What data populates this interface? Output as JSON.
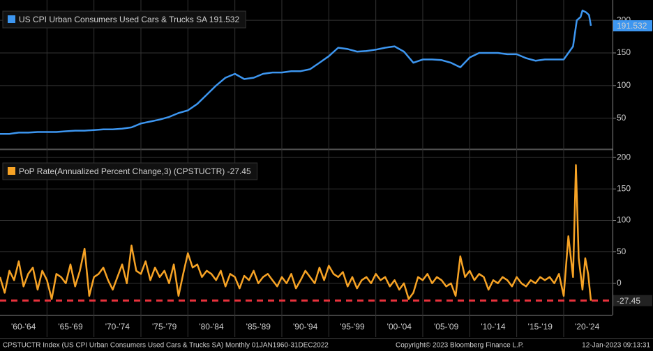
{
  "chart_data": [
    {
      "type": "line",
      "name": "US CPI Urban Consumers Used Cars & Trucks SA",
      "color": "#3d96f0",
      "last_label": "191.532",
      "x": [
        1960,
        1961,
        1962,
        1963,
        1964,
        1965,
        1966,
        1967,
        1968,
        1969,
        1970,
        1971,
        1972,
        1973,
        1974,
        1975,
        1976,
        1977,
        1978,
        1979,
        1980,
        1981,
        1982,
        1983,
        1984,
        1985,
        1986,
        1987,
        1988,
        1989,
        1990,
        1991,
        1992,
        1993,
        1994,
        1995,
        1996,
        1997,
        1998,
        1999,
        2000,
        2001,
        2002,
        2003,
        2004,
        2005,
        2006,
        2007,
        2008,
        2009,
        2010,
        2011,
        2012,
        2013,
        2014,
        2015,
        2016,
        2017,
        2018,
        2019,
        2020,
        2020.5,
        2021,
        2021.4,
        2021.8,
        2022,
        2022.4,
        2022.7,
        2022.9
      ],
      "values": [
        26,
        26,
        28,
        28,
        29,
        29,
        29,
        30,
        31,
        31,
        32,
        33,
        33,
        34,
        36,
        42,
        45,
        48,
        52,
        58,
        62,
        72,
        86,
        100,
        112,
        118,
        110,
        112,
        118,
        120,
        120,
        122,
        122,
        125,
        135,
        145,
        158,
        156,
        152,
        153,
        155,
        158,
        160,
        152,
        135,
        140,
        140,
        139,
        135,
        128,
        143,
        150,
        150,
        150,
        148,
        148,
        142,
        138,
        140,
        140,
        140,
        150,
        160,
        200,
        205,
        215,
        212,
        208,
        191.532
      ],
      "xlim": [
        1960,
        2025.2
      ],
      "ylim": [
        5,
        231
      ],
      "yticks": [
        50,
        100,
        150,
        200
      ],
      "grid": true
    },
    {
      "type": "line",
      "name": "PoP Rate(Annualized Percent Change,3) (CPSTUCTR)",
      "color": "#f7a325",
      "last_label": "-27.45",
      "x": [
        1960,
        1960.5,
        1961,
        1961.5,
        1962,
        1962.5,
        1963,
        1963.5,
        1964,
        1964.5,
        1965,
        1965.5,
        1966,
        1966.5,
        1967,
        1967.5,
        1968,
        1968.5,
        1969,
        1969.5,
        1970,
        1970.5,
        1971,
        1971.5,
        1972,
        1972.5,
        1973,
        1973.5,
        1974,
        1974.5,
        1975,
        1975.5,
        1976,
        1976.5,
        1977,
        1977.5,
        1978,
        1978.5,
        1979,
        1979.5,
        1980,
        1980.5,
        1981,
        1981.5,
        1982,
        1982.5,
        1983,
        1983.5,
        1984,
        1984.5,
        1985,
        1985.5,
        1986,
        1986.5,
        1987,
        1987.5,
        1988,
        1988.5,
        1989,
        1989.5,
        1990,
        1990.5,
        1991,
        1991.5,
        1992,
        1992.5,
        1993,
        1993.5,
        1994,
        1994.5,
        1995,
        1995.5,
        1996,
        1996.5,
        1997,
        1997.5,
        1998,
        1998.5,
        1999,
        1999.5,
        2000,
        2000.5,
        2001,
        2001.5,
        2002,
        2002.5,
        2003,
        2003.5,
        2004,
        2004.5,
        2005,
        2005.5,
        2006,
        2006.5,
        2007,
        2007.5,
        2008,
        2008.5,
        2009,
        2009.5,
        2010,
        2010.5,
        2011,
        2011.5,
        2012,
        2012.5,
        2013,
        2013.5,
        2014,
        2014.5,
        2015,
        2015.5,
        2016,
        2016.5,
        2017,
        2017.5,
        2018,
        2018.5,
        2019,
        2019.5,
        2020,
        2020.5,
        2021,
        2021.3,
        2021.6,
        2022,
        2022.3,
        2022.6,
        2022.9
      ],
      "values": [
        10,
        -15,
        20,
        5,
        35,
        -5,
        15,
        25,
        -10,
        20,
        5,
        -25,
        15,
        10,
        0,
        30,
        -5,
        20,
        55,
        -20,
        10,
        15,
        25,
        5,
        -10,
        10,
        30,
        0,
        60,
        20,
        15,
        35,
        5,
        25,
        10,
        20,
        0,
        30,
        -20,
        15,
        48,
        25,
        30,
        10,
        20,
        15,
        5,
        20,
        -5,
        15,
        10,
        -8,
        12,
        5,
        20,
        0,
        10,
        15,
        5,
        -5,
        10,
        0,
        15,
        -8,
        5,
        20,
        10,
        0,
        25,
        5,
        28,
        15,
        10,
        18,
        -5,
        10,
        -8,
        5,
        10,
        0,
        15,
        5,
        10,
        -5,
        5,
        -10,
        0,
        -25,
        -15,
        10,
        5,
        15,
        0,
        10,
        5,
        -5,
        0,
        -20,
        43,
        10,
        20,
        5,
        15,
        10,
        -10,
        5,
        0,
        10,
        5,
        -5,
        10,
        0,
        -5,
        5,
        0,
        10,
        5,
        10,
        0,
        15,
        -20,
        75,
        10,
        188,
        40,
        -10,
        40,
        15,
        -27.45
      ],
      "reference_line": -27.45,
      "reference_color": "#e8323c",
      "xlim": [
        1960,
        2025.2
      ],
      "ylim": [
        -50,
        209
      ],
      "yticks": [
        0,
        50,
        100,
        150,
        200
      ],
      "grid": true,
      "xgrid": [
        1965,
        1970,
        1975,
        1980,
        1985,
        1990,
        1995,
        2000,
        2005,
        2010,
        2015,
        2020
      ],
      "xticks": [
        {
          "value": 1962.5,
          "label": "'60-'64"
        },
        {
          "value": 1967.5,
          "label": "'65-'69"
        },
        {
          "value": 1972.5,
          "label": "'70-'74"
        },
        {
          "value": 1977.5,
          "label": "'75-'79"
        },
        {
          "value": 1982.5,
          "label": "'80-'84"
        },
        {
          "value": 1987.5,
          "label": "'85-'89"
        },
        {
          "value": 1992.5,
          "label": "'90-'94"
        },
        {
          "value": 1997.5,
          "label": "'95-'99"
        },
        {
          "value": 2002.5,
          "label": "'00-'04"
        },
        {
          "value": 2007.5,
          "label": "'05-'09"
        },
        {
          "value": 2012.5,
          "label": "'10-'14"
        },
        {
          "value": 2017.5,
          "label": "'15-'19"
        },
        {
          "value": 2022.5,
          "label": "'20-'24"
        }
      ]
    }
  ],
  "footer": {
    "source": "CPSTUCTR Index (US CPI Urban Consumers Used Cars & Trucks SA)  Monthly 01JAN1960-31DEC2022",
    "copyright": "Copyright© 2023 Bloomberg Finance L.P.",
    "timestamp": "12-Jan-2023 09:13:31"
  }
}
